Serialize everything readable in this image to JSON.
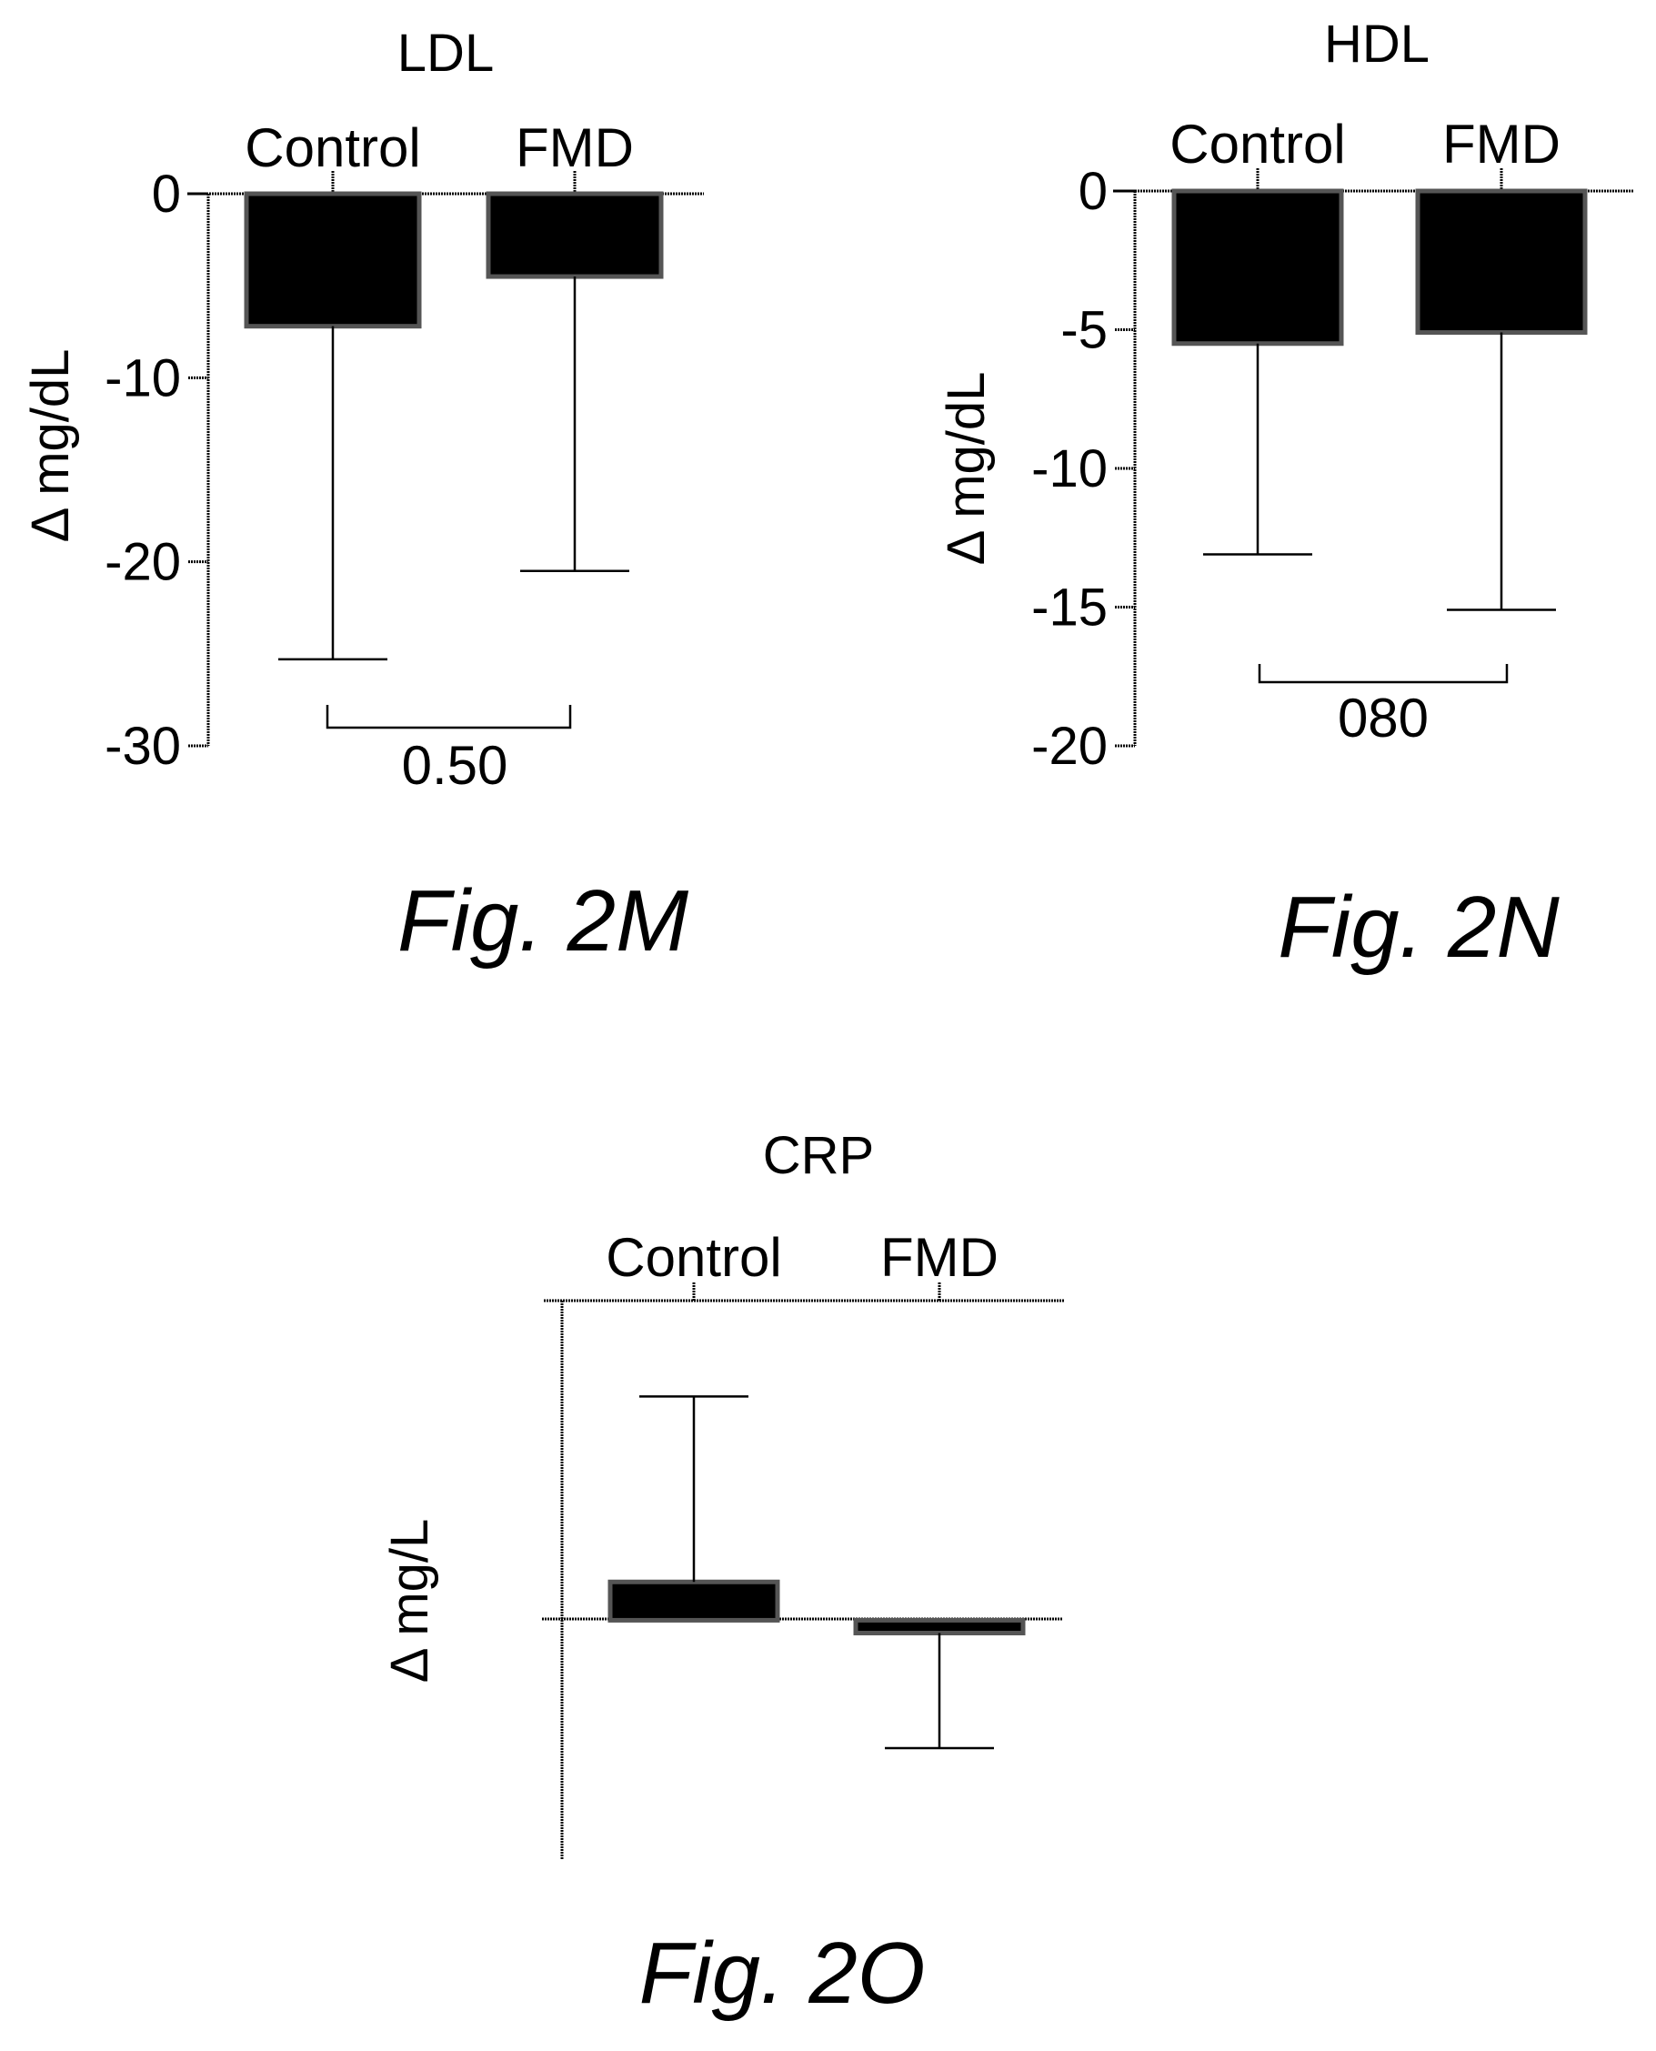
{
  "figure_captions": [
    "Fig. 2M",
    "Fig. 2N",
    "Fig. 2O"
  ],
  "chart_data": [
    {
      "type": "bar",
      "title": "LDL",
      "ylabel": "Δ mg/dL",
      "categories": [
        "Control",
        "FMD"
      ],
      "values": [
        -7.2,
        -4.5
      ],
      "error_lower": [
        -25.3,
        -20.5
      ],
      "ylim": [
        -30,
        0
      ],
      "yticks": [
        "0",
        "-10",
        "-20",
        "-30"
      ],
      "ytick_values": [
        0,
        -10,
        -20,
        -30
      ],
      "p_value": "0.50",
      "grid": false,
      "axis_position": "top"
    },
    {
      "type": "bar",
      "title": "HDL",
      "ylabel": "Δ mg/dL",
      "categories": [
        "Control",
        "FMD"
      ],
      "values": [
        -5.5,
        -5.1
      ],
      "error_lower": [
        -13.1,
        -15.1
      ],
      "ylim": [
        -20,
        0
      ],
      "yticks": [
        "0",
        "-5",
        "-10",
        "-15",
        "-20"
      ],
      "ytick_values": [
        0,
        -5,
        -10,
        -15,
        -20
      ],
      "p_value": "080",
      "grid": false,
      "axis_position": "top"
    },
    {
      "type": "bar",
      "title": "CRP",
      "ylabel": "Δ mg/L",
      "categories": [
        "Control",
        "FMD"
      ],
      "values": [
        0.12,
        -0.04
      ],
      "error_upper": [
        0.7,
        null
      ],
      "error_lower": [
        null,
        -0.4
      ],
      "ylim": [
        -0.75,
        1.0
      ],
      "yticks": [],
      "grid": false,
      "axis_position": "top"
    }
  ]
}
